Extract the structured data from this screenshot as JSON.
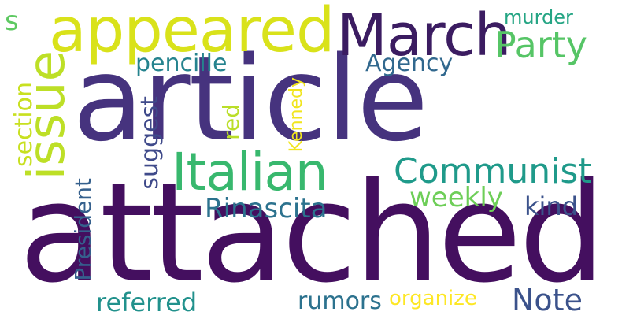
{
  "words": {
    "article": {
      "text": "article",
      "color": "#46337e"
    },
    "attached": {
      "text": "attached",
      "color": "#440f5f"
    },
    "appeared": {
      "text": "appeared",
      "color": "#d9e21a"
    },
    "march": {
      "text": "March",
      "color": "#3b1c61"
    },
    "party": {
      "text": "Party",
      "color": "#56c566"
    },
    "issue": {
      "text": "issue",
      "color": "#bddf26"
    },
    "italian": {
      "text": "Italian",
      "color": "#38b86e"
    },
    "communist": {
      "text": "Communist",
      "color": "#1f9a8a"
    },
    "rinascita": {
      "text": "Rinascita",
      "color": "#2c728e"
    },
    "weekly": {
      "text": "weekly",
      "color": "#6ece58"
    },
    "kind": {
      "text": "kind",
      "color": "#3b528b"
    },
    "note": {
      "text": "Note",
      "color": "#3b528b"
    },
    "referred": {
      "text": "referred",
      "color": "#21918c"
    },
    "rumors": {
      "text": "rumors",
      "color": "#2c728e"
    },
    "organize": {
      "text": "organize",
      "color": "#fde725"
    },
    "pencille": {
      "text": "pencille",
      "color": "#25838e"
    },
    "agency": {
      "text": "Agency",
      "color": "#31688e"
    },
    "murder": {
      "text": "murder",
      "color": "#25a584"
    },
    "section": {
      "text": "section",
      "color": "#c8e020"
    },
    "suggest": {
      "text": "suggest",
      "color": "#3f4a8a"
    },
    "red": {
      "text": "red",
      "color": "#bade28"
    },
    "kennedy": {
      "text": "Kennedy",
      "color": "#f1e51d"
    },
    "president": {
      "text": "President",
      "color": "#35608d"
    },
    "small_left": {
      "text": "s",
      "color": "#5ec962"
    }
  }
}
